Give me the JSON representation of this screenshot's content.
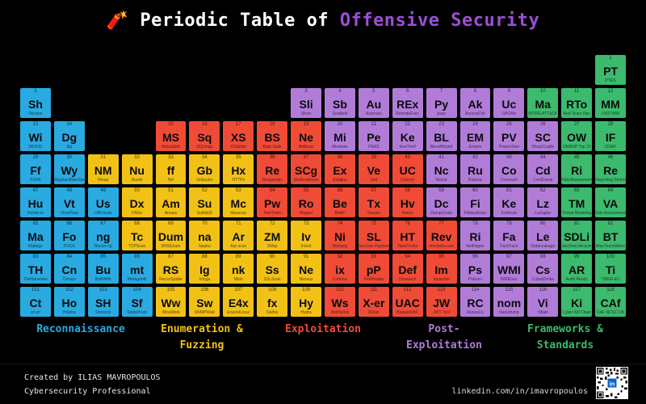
{
  "title": {
    "emoji": "🧨",
    "prefix": "Periodic Table of",
    "highlight": "Offensive Security"
  },
  "colors": {
    "background": "#000000",
    "title_text": "#ffffff",
    "title_highlight": "#9b4fd6",
    "recon": "#29aae1",
    "enumeration": "#f2c115",
    "exploitation": "#ef4b36",
    "postexploitation": "#b07cd8",
    "frameworks": "#3cba6e",
    "footer_text": "#e6e6e6",
    "linkedin_badge": "#0a66c2"
  },
  "categories": [
    {
      "id": "recon",
      "label": "Reconnaissance"
    },
    {
      "id": "enumeration",
      "label": "Enumeration &\nFuzzing"
    },
    {
      "id": "exploitation",
      "label": "Exploitation"
    },
    {
      "id": "postexploitation",
      "label": "Post-\nExploitation"
    },
    {
      "id": "frameworks",
      "label": "Frameworks &\nStandards"
    }
  ],
  "elements": [
    {
      "n": 1,
      "sym": "PT",
      "name": "PTES",
      "cat": "frameworks",
      "row": 1,
      "col": 18
    },
    {
      "n": 2,
      "sym": "Sh",
      "name": "Shodan",
      "cat": "recon",
      "row": 2,
      "col": 1
    },
    {
      "n": 3,
      "sym": "Sli",
      "name": "Sliver",
      "cat": "postexploitation",
      "row": 2,
      "col": 9
    },
    {
      "n": 4,
      "sym": "Sb",
      "name": "Seatbelt",
      "cat": "postexploitation",
      "row": 2,
      "col": 10
    },
    {
      "n": 5,
      "sym": "Au",
      "name": "Autoruns",
      "cat": "postexploitation",
      "row": 2,
      "col": 11
    },
    {
      "n": 6,
      "sym": "REx",
      "name": "RemoteExec",
      "cat": "postexploitation",
      "row": 2,
      "col": 12
    },
    {
      "n": 7,
      "sym": "Py",
      "name": "pspy",
      "cat": "postexploitation",
      "row": 2,
      "col": 13
    },
    {
      "n": 8,
      "sym": "Ak",
      "name": "AccessChk",
      "cat": "postexploitation",
      "row": 2,
      "col": 14
    },
    {
      "n": 9,
      "sym": "Uc",
      "name": "UACMe",
      "cat": "postexploitation",
      "row": 2,
      "col": 15
    },
    {
      "n": 10,
      "sym": "Ma",
      "name": "MITRE ATT&CK",
      "cat": "frameworks",
      "row": 2,
      "col": 16
    },
    {
      "n": 11,
      "sym": "RTo",
      "name": "Red Team Ops",
      "cat": "frameworks",
      "row": 2,
      "col": 17
    },
    {
      "n": 12,
      "sym": "MM",
      "name": "OSSTMM",
      "cat": "frameworks",
      "row": 2,
      "col": 18
    },
    {
      "n": 13,
      "sym": "Wi",
      "name": "WHOIS",
      "cat": "recon",
      "row": 3,
      "col": 1
    },
    {
      "n": 14,
      "sym": "Dg",
      "name": "dig",
      "cat": "recon",
      "row": 3,
      "col": 2
    },
    {
      "n": 15,
      "sym": "MS",
      "name": "Metasploit",
      "cat": "exploitation",
      "row": 3,
      "col": 5
    },
    {
      "n": 16,
      "sym": "Sq",
      "name": "SQLmap",
      "cat": "exploitation",
      "row": 3,
      "col": 6
    },
    {
      "n": 17,
      "sym": "XS",
      "name": "XSStrike",
      "cat": "exploitation",
      "row": 3,
      "col": 7
    },
    {
      "n": 18,
      "sym": "BS",
      "name": "Burp Suite",
      "cat": "exploitation",
      "row": 3,
      "col": 8
    },
    {
      "n": 19,
      "sym": "Ne",
      "name": "NetExec",
      "cat": "exploitation",
      "row": 3,
      "col": 9
    },
    {
      "n": 20,
      "sym": "Mi",
      "name": "Mimikatz",
      "cat": "postexploitation",
      "row": 3,
      "col": 10
    },
    {
      "n": 21,
      "sym": "Pe",
      "name": "PEAS",
      "cat": "postexploitation",
      "row": 3,
      "col": 11
    },
    {
      "n": 22,
      "sym": "Ke",
      "name": "KeeThief",
      "cat": "postexploitation",
      "row": 3,
      "col": 12
    },
    {
      "n": 23,
      "sym": "BL",
      "name": "BloodHound",
      "cat": "postexploitation",
      "row": 3,
      "col": 13
    },
    {
      "n": 24,
      "sym": "EM",
      "name": "Empire",
      "cat": "postexploitation",
      "row": 3,
      "col": 14
    },
    {
      "n": 25,
      "sym": "PV",
      "name": "PowerView",
      "cat": "postexploitation",
      "row": 3,
      "col": 15
    },
    {
      "n": 26,
      "sym": "SC",
      "name": "SharpCradle",
      "cat": "postexploitation",
      "row": 3,
      "col": 16
    },
    {
      "n": 27,
      "sym": "OW",
      "name": "OWASP Top 10",
      "cat": "frameworks",
      "row": 3,
      "col": 17
    },
    {
      "n": 28,
      "sym": "IF",
      "name": "ISSAF",
      "cat": "frameworks",
      "row": 3,
      "col": 18
    },
    {
      "n": 29,
      "sym": "Ff",
      "name": "FOFA",
      "cat": "recon",
      "row": 4,
      "col": 1
    },
    {
      "n": 30,
      "sym": "Wy",
      "name": "WaybackMachine",
      "cat": "recon",
      "row": 4,
      "col": 2
    },
    {
      "n": 31,
      "sym": "NM",
      "name": "Nmap",
      "cat": "enumeration",
      "row": 4,
      "col": 3
    },
    {
      "n": 32,
      "sym": "Nu",
      "name": "Nuclei",
      "cat": "enumeration",
      "row": 4,
      "col": 4
    },
    {
      "n": 33,
      "sym": "ff",
      "name": "ffuf",
      "cat": "enumeration",
      "row": 4,
      "col": 5
    },
    {
      "n": 34,
      "sym": "Gb",
      "name": "Gobuster",
      "cat": "enumeration",
      "row": 4,
      "col": 6
    },
    {
      "n": 35,
      "sym": "Hx",
      "name": "HTTPx",
      "cat": "enumeration",
      "row": 4,
      "col": 7
    },
    {
      "n": 36,
      "sym": "Re",
      "name": "Responder",
      "cat": "exploitation",
      "row": 4,
      "col": 8
    },
    {
      "n": 37,
      "sym": "SCg",
      "name": "ShellcodeGen",
      "cat": "exploitation",
      "row": 4,
      "col": 9
    },
    {
      "n": 38,
      "sym": "Ex",
      "name": "Evilginx",
      "cat": "exploitation",
      "row": 4,
      "col": 10
    },
    {
      "n": 39,
      "sym": "Ve",
      "name": "Veil",
      "cat": "exploitation",
      "row": 4,
      "col": 11
    },
    {
      "n": 40,
      "sym": "UC",
      "name": "Unicorn",
      "cat": "exploitation",
      "row": 4,
      "col": 12
    },
    {
      "n": 41,
      "sym": "Nc",
      "name": "Netcat",
      "cat": "postexploitation",
      "row": 4,
      "col": 13
    },
    {
      "n": 42,
      "sym": "Ru",
      "name": "Rubeus",
      "cat": "postexploitation",
      "row": 4,
      "col": 14
    },
    {
      "n": 43,
      "sym": "Co",
      "name": "Covenant",
      "cat": "postexploitation",
      "row": 4,
      "col": 15
    },
    {
      "n": 44,
      "sym": "Cd",
      "name": "CredDump",
      "cat": "postexploitation",
      "row": 4,
      "col": 16
    },
    {
      "n": 45,
      "sym": "Ri",
      "name": "Risk Assessment",
      "cat": "frameworks",
      "row": 4,
      "col": 17
    },
    {
      "n": 46,
      "sym": "Re",
      "name": "Reporting Stndrds",
      "cat": "frameworks",
      "row": 4,
      "col": 18
    },
    {
      "n": 47,
      "sym": "Hu",
      "name": "Hunter.io",
      "cat": "recon",
      "row": 5,
      "col": 1
    },
    {
      "n": 48,
      "sym": "Vt",
      "name": "VirusTotal",
      "cat": "recon",
      "row": 5,
      "col": 2
    },
    {
      "n": 49,
      "sym": "Us",
      "name": "URLScan",
      "cat": "recon",
      "row": 5,
      "col": 3
    },
    {
      "n": 50,
      "sym": "Dx",
      "name": "DNSx",
      "cat": "enumeration",
      "row": 5,
      "col": 4
    },
    {
      "n": 51,
      "sym": "Am",
      "name": "Amass",
      "cat": "enumeration",
      "row": 5,
      "col": 5
    },
    {
      "n": 52,
      "sym": "Su",
      "name": "Sublist3r",
      "cat": "enumeration",
      "row": 5,
      "col": 6
    },
    {
      "n": 53,
      "sym": "Mc",
      "name": "Masscan",
      "cat": "enumeration",
      "row": 5,
      "col": 7
    },
    {
      "n": 54,
      "sym": "Pw",
      "name": "PwnTools",
      "cat": "exploitation",
      "row": 5,
      "col": 8
    },
    {
      "n": 55,
      "sym": "Ro",
      "name": "Ropper",
      "cat": "exploitation",
      "row": 5,
      "col": 9
    },
    {
      "n": 56,
      "sym": "Be",
      "name": "BeEF",
      "cat": "exploitation",
      "row": 5,
      "col": 10
    },
    {
      "n": 57,
      "sym": "Tx",
      "name": "Toxssin",
      "cat": "exploitation",
      "row": 5,
      "col": 11
    },
    {
      "n": 58,
      "sym": "Hv",
      "name": "Havoc",
      "cat": "exploitation",
      "row": 5,
      "col": 12
    },
    {
      "n": 59,
      "sym": "Dc",
      "name": "DumpCreds",
      "cat": "postexploitation",
      "row": 5,
      "col": 13
    },
    {
      "n": 60,
      "sym": "Fi",
      "name": "FilelessExec",
      "cat": "postexploitation",
      "row": 5,
      "col": 14
    },
    {
      "n": 61,
      "sym": "Ke",
      "name": "Kerbrute",
      "cat": "postexploitation",
      "row": 5,
      "col": 15
    },
    {
      "n": 62,
      "sym": "Lz",
      "name": "LaZagne",
      "cat": "postexploitation",
      "row": 5,
      "col": 16
    },
    {
      "n": 63,
      "sym": "TM",
      "name": "Threat Modeling",
      "cat": "frameworks",
      "row": 5,
      "col": 17
    },
    {
      "n": 64,
      "sym": "VA",
      "name": "Vuln Assessment",
      "cat": "frameworks",
      "row": 5,
      "col": 18
    },
    {
      "n": 65,
      "sym": "Ma",
      "name": "Maltego",
      "cat": "recon",
      "row": 6,
      "col": 1
    },
    {
      "n": 66,
      "sym": "Fo",
      "name": "FOCA",
      "cat": "recon",
      "row": 6,
      "col": 2
    },
    {
      "n": 67,
      "sym": "ng",
      "name": "Recon-ng",
      "cat": "recon",
      "row": 6,
      "col": 3
    },
    {
      "n": 68,
      "sym": "Tc",
      "name": "TCPScan",
      "cat": "enumeration",
      "row": 6,
      "col": 4
    },
    {
      "n": 69,
      "sym": "Dum",
      "name": "DNSEnum",
      "cat": "enumeration",
      "row": 6,
      "col": 5
    },
    {
      "n": 70,
      "sym": "na",
      "name": "Naabu",
      "cat": "enumeration",
      "row": 6,
      "col": 6
    },
    {
      "n": 71,
      "sym": "Ar",
      "name": "Arp-scan",
      "cat": "enumeration",
      "row": 6,
      "col": 7
    },
    {
      "n": 72,
      "sym": "ZM",
      "name": "ZMap",
      "cat": "enumeration",
      "row": 6,
      "col": 8
    },
    {
      "n": 73,
      "sym": "Iv",
      "name": "Invicti",
      "cat": "enumeration",
      "row": 6,
      "col": 9
    },
    {
      "n": 74,
      "sym": "Ni",
      "name": "Nishang",
      "cat": "exploitation",
      "row": 6,
      "col": 10
    },
    {
      "n": 75,
      "sym": "SL",
      "name": "SecLists Payloads",
      "cat": "exploitation",
      "row": 6,
      "col": 11
    },
    {
      "n": 76,
      "sym": "HT",
      "name": "HackTricks",
      "cat": "exploitation",
      "row": 6,
      "col": 12
    },
    {
      "n": 77,
      "sym": "Rev",
      "name": "revshells.com",
      "cat": "exploitation",
      "row": 6,
      "col": 13
    },
    {
      "n": 78,
      "sym": "Ri",
      "name": "NetRipper",
      "cat": "postexploitation",
      "row": 6,
      "col": 14
    },
    {
      "n": 79,
      "sym": "Fa",
      "name": "FastTrack",
      "cat": "postexploitation",
      "row": 6,
      "col": 15
    },
    {
      "n": 80,
      "sym": "Le",
      "name": "DataLeakage",
      "cat": "postexploitation",
      "row": 6,
      "col": 16
    },
    {
      "n": 81,
      "sym": "SDLi",
      "name": "SecDevLifecycle",
      "cat": "frameworks",
      "row": 6,
      "col": 17
    },
    {
      "n": 82,
      "sym": "BT",
      "name": "BlueTeamMatrix",
      "cat": "frameworks",
      "row": 6,
      "col": 18
    },
    {
      "n": 83,
      "sym": "TH",
      "name": "TheHarvester",
      "cat": "recon",
      "row": 7,
      "col": 1
    },
    {
      "n": 84,
      "sym": "Cn",
      "name": "Censys",
      "cat": "recon",
      "row": 7,
      "col": 2
    },
    {
      "n": 85,
      "sym": "Bu",
      "name": "BuiltWith",
      "cat": "recon",
      "row": 7,
      "col": 3
    },
    {
      "n": 86,
      "sym": "mt",
      "name": "Metagoofil",
      "cat": "recon",
      "row": 7,
      "col": 4
    },
    {
      "n": 87,
      "sym": "RS",
      "name": "ReconSpider",
      "cat": "enumeration",
      "row": 7,
      "col": 5
    },
    {
      "n": 88,
      "sym": "Ig",
      "name": "Infoga",
      "cat": "enumeration",
      "row": 7,
      "col": 6
    },
    {
      "n": 89,
      "sym": "nk",
      "name": "Nikto",
      "cat": "enumeration",
      "row": 7,
      "col": 7
    },
    {
      "n": 90,
      "sym": "Ss",
      "name": "SSLScan",
      "cat": "enumeration",
      "row": 7,
      "col": 8
    },
    {
      "n": 91,
      "sym": "Ne",
      "name": "Nessus",
      "cat": "enumeration",
      "row": 7,
      "col": 9
    },
    {
      "n": 92,
      "sym": "ix",
      "name": "Commix",
      "cat": "exploitation",
      "row": 7,
      "col": 10
    },
    {
      "n": 93,
      "sym": "pP",
      "name": "PetitPotam",
      "cat": "exploitation",
      "row": 7,
      "col": 11
    },
    {
      "n": 94,
      "sym": "Def",
      "name": "Dirsearch",
      "cat": "exploitation",
      "row": 7,
      "col": 12
    },
    {
      "n": 95,
      "sym": "Im",
      "name": "Impacket",
      "cat": "exploitation",
      "row": 7,
      "col": 13
    },
    {
      "n": 96,
      "sym": "Ps",
      "name": "PsExec",
      "cat": "postexploitation",
      "row": 7,
      "col": 14
    },
    {
      "n": 97,
      "sym": "WMI",
      "name": "WMIExec",
      "cat": "postexploitation",
      "row": 7,
      "col": 15
    },
    {
      "n": 98,
      "sym": "Cs",
      "name": "CobaltStrike",
      "cat": "postexploitation",
      "row": 7,
      "col": 16
    },
    {
      "n": 99,
      "sym": "AR",
      "name": "Audit Ready",
      "cat": "frameworks",
      "row": 7,
      "col": 17
    },
    {
      "n": 100,
      "sym": "Ti",
      "name": "TIBER-EU",
      "cat": "frameworks",
      "row": 7,
      "col": 18
    },
    {
      "n": 101,
      "sym": "Ct",
      "name": "crt.sh",
      "cat": "recon",
      "row": 8,
      "col": 1
    },
    {
      "n": 102,
      "sym": "Ho",
      "name": "Holehe",
      "cat": "recon",
      "row": 8,
      "col": 2
    },
    {
      "n": 103,
      "sym": "SH",
      "name": "Sherlock",
      "cat": "recon",
      "row": 8,
      "col": 3
    },
    {
      "n": 104,
      "sym": "Sf",
      "name": "SpiderFoot",
      "cat": "recon",
      "row": 8,
      "col": 4
    },
    {
      "n": 105,
      "sym": "Ww",
      "name": "WhatWeb",
      "cat": "enumeration",
      "row": 8,
      "col": 5
    },
    {
      "n": 106,
      "sym": "Sw",
      "name": "SNMPWalk",
      "cat": "enumeration",
      "row": 8,
      "col": 6
    },
    {
      "n": 107,
      "sym": "E4x",
      "name": "Enum4Linux",
      "cat": "enumeration",
      "row": 8,
      "col": 7
    },
    {
      "n": 108,
      "sym": "fx",
      "name": "Dalfox",
      "cat": "enumeration",
      "row": 8,
      "col": 8
    },
    {
      "n": 109,
      "sym": "Hy",
      "name": "Hydra",
      "cat": "enumeration",
      "row": 8,
      "col": 9
    },
    {
      "n": 110,
      "sym": "Ws",
      "name": "WebSploit",
      "cat": "exploitation",
      "row": 8,
      "col": 10
    },
    {
      "n": 111,
      "sym": "X-er",
      "name": "XSSer",
      "cat": "exploitation",
      "row": 8,
      "col": 11
    },
    {
      "n": 112,
      "sym": "UAC",
      "name": "BypassUAC",
      "cat": "exploitation",
      "row": 8,
      "col": 12
    },
    {
      "n": 113,
      "sym": "JW",
      "name": "JWT Tool",
      "cat": "exploitation",
      "row": 8,
      "col": 13
    },
    {
      "n": 114,
      "sym": "RC",
      "name": "RunasCs",
      "cat": "postexploitation",
      "row": 8,
      "col": 14
    },
    {
      "n": 115,
      "sym": "nom",
      "name": "Nanodump",
      "cat": "postexploitation",
      "row": 8,
      "col": 15
    },
    {
      "n": 116,
      "sym": "Vi",
      "name": "Villain",
      "cat": "postexploitation",
      "row": 8,
      "col": 16
    },
    {
      "n": 117,
      "sym": "Ki",
      "name": "Cyber Kill Chain",
      "cat": "frameworks",
      "row": 8,
      "col": 17
    },
    {
      "n": 118,
      "sym": "CAf",
      "name": "CAF NCSC UK",
      "cat": "frameworks",
      "row": 8,
      "col": 18
    }
  ],
  "footer": {
    "created_by": "Created by ILIAS MAVROPOULOS",
    "role": "Cybersecurity Professional",
    "linkedin_url": "linkedin.com/in/imavropoulos",
    "linkedin_badge": "in"
  }
}
